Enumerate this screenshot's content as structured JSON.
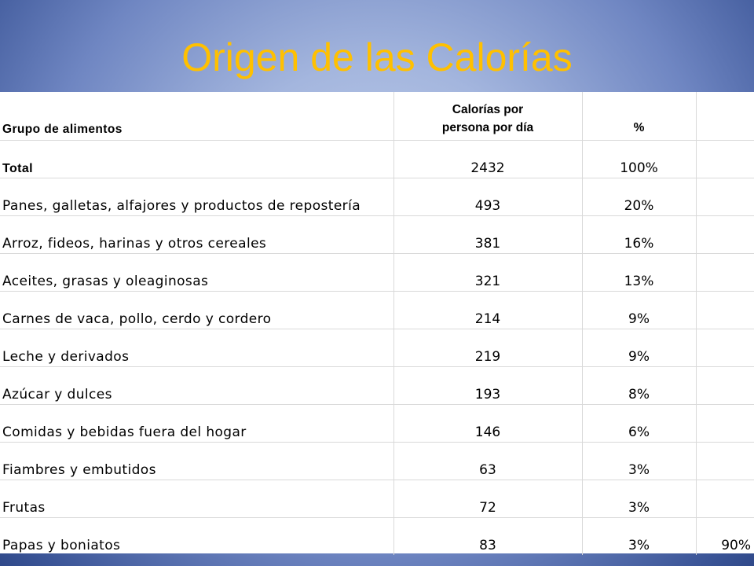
{
  "slide": {
    "title": "Origen de las Calorías"
  },
  "table": {
    "headers": {
      "group": "Grupo de alimentos",
      "calories_line1": "Calorías por",
      "calories_line2": "persona por día",
      "percent": "%",
      "extra": ""
    },
    "total": {
      "label": "Total",
      "calories": "2432",
      "percent": "100%",
      "extra": ""
    },
    "rows": [
      {
        "label": "Panes, galletas, alfajores y productos de repostería",
        "calories": "493",
        "percent": "20%",
        "extra": ""
      },
      {
        "label": "Arroz, fideos, harinas y otros cereales",
        "calories": "381",
        "percent": "16%",
        "extra": ""
      },
      {
        "label": "Aceites, grasas y oleaginosas",
        "calories": "321",
        "percent": "13%",
        "extra": ""
      },
      {
        "label": "Carnes de vaca, pollo, cerdo y cordero",
        "calories": "214",
        "percent": "9%",
        "extra": ""
      },
      {
        "label": "Leche y derivados",
        "calories": "219",
        "percent": "9%",
        "extra": ""
      },
      {
        "label": "Azúcar y dulces",
        "calories": "193",
        "percent": "8%",
        "extra": ""
      },
      {
        "label": "Comidas y bebidas fuera del hogar",
        "calories": "146",
        "percent": "6%",
        "extra": ""
      },
      {
        "label": "Fiambres y embutidos",
        "calories": "63",
        "percent": "3%",
        "extra": ""
      },
      {
        "label": "Frutas",
        "calories": "72",
        "percent": "3%",
        "extra": ""
      },
      {
        "label": "Papas y boniatos",
        "calories": "83",
        "percent": "3%",
        "extra": "90%"
      }
    ]
  },
  "colors": {
    "title": "#ffc000",
    "background_light": "#c3d0ea",
    "background_dark": "#223b7a"
  }
}
